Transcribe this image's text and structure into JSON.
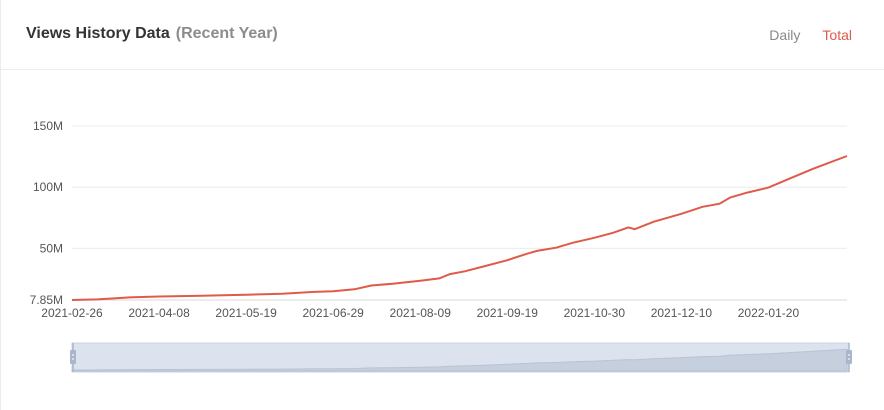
{
  "header": {
    "title": "Views History Data",
    "subtitle": "(Recent Year)",
    "tabs": [
      {
        "label": "Daily",
        "active": false
      },
      {
        "label": "Total",
        "active": true
      }
    ]
  },
  "colors": {
    "line": "#e05a4a",
    "grid": "#ececec",
    "slider_fill": "#dde3ee",
    "slider_border": "#c9d2e2",
    "slider_handle": "#a9b7cc"
  },
  "chart_data": {
    "type": "line",
    "title": "",
    "xlabel": "",
    "ylabel": "",
    "y_ticks": [
      {
        "value": 7.85,
        "label": "7.85M"
      },
      {
        "value": 50,
        "label": "50M"
      },
      {
        "value": 100,
        "label": "100M"
      },
      {
        "value": 150,
        "label": "150M"
      }
    ],
    "ylim": [
      7.85,
      150
    ],
    "xlim": [
      "2021-02-26",
      "2022-02-26"
    ],
    "x_ticks": [
      "2021-02-26",
      "2021-04-08",
      "2021-05-19",
      "2021-06-29",
      "2021-08-09",
      "2021-09-19",
      "2021-10-30",
      "2021-12-10",
      "2022-01-20"
    ],
    "grid": true,
    "series": [
      {
        "values_unit": "M",
        "points": [
          [
            "2021-02-26",
            7.85
          ],
          [
            "2021-03-10",
            8.3
          ],
          [
            "2021-03-25",
            10.0
          ],
          [
            "2021-04-08",
            10.7
          ],
          [
            "2021-04-25",
            11.2
          ],
          [
            "2021-05-19",
            12.2
          ],
          [
            "2021-06-05",
            13.0
          ],
          [
            "2021-06-20",
            14.5
          ],
          [
            "2021-06-29",
            15.0
          ],
          [
            "2021-07-09",
            16.6
          ],
          [
            "2021-07-17",
            19.7
          ],
          [
            "2021-07-27",
            21.2
          ],
          [
            "2021-08-09",
            23.5
          ],
          [
            "2021-08-18",
            25.5
          ],
          [
            "2021-08-23",
            29.0
          ],
          [
            "2021-08-30",
            31.3
          ],
          [
            "2021-09-08",
            35.3
          ],
          [
            "2021-09-19",
            40.4
          ],
          [
            "2021-09-28",
            45.5
          ],
          [
            "2021-10-03",
            48.0
          ],
          [
            "2021-10-12",
            50.6
          ],
          [
            "2021-10-20",
            54.7
          ],
          [
            "2021-10-30",
            58.7
          ],
          [
            "2021-11-08",
            62.8
          ],
          [
            "2021-11-15",
            67.2
          ],
          [
            "2021-11-18",
            65.7
          ],
          [
            "2021-11-27",
            71.8
          ],
          [
            "2021-12-10",
            78.3
          ],
          [
            "2021-12-20",
            84.0
          ],
          [
            "2021-12-28",
            86.5
          ],
          [
            "2022-01-02",
            91.6
          ],
          [
            "2022-01-10",
            95.6
          ],
          [
            "2022-01-20",
            99.7
          ],
          [
            "2022-01-30",
            107.0
          ],
          [
            "2022-02-10",
            115.0
          ],
          [
            "2022-02-26",
            125.5
          ]
        ]
      }
    ]
  }
}
